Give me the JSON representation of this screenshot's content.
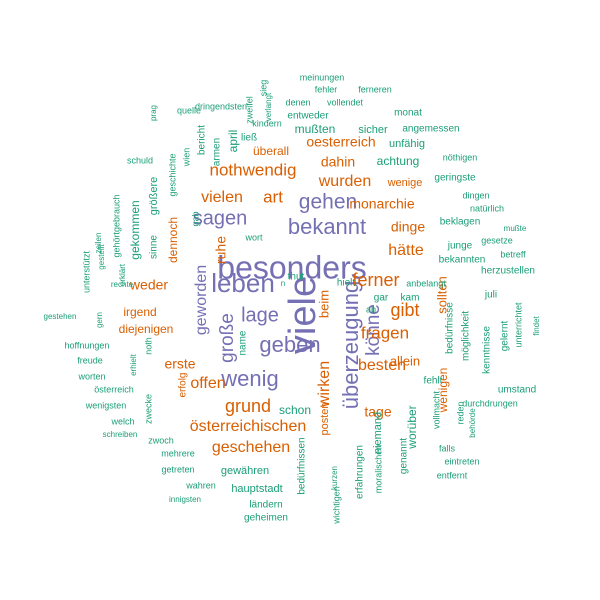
{
  "colors": {
    "purple": "#7570b3",
    "orange": "#d95f02",
    "teal": "#1b9e77"
  },
  "words": [
    {
      "text": "besonders",
      "color": "purple"
    },
    {
      "text": "viele",
      "color": "purple"
    },
    {
      "text": "überzeugung",
      "color": "purple"
    },
    {
      "text": "leben",
      "color": "purple"
    },
    {
      "text": "geben",
      "color": "purple"
    },
    {
      "text": "wenig",
      "color": "purple"
    },
    {
      "text": "bekannt",
      "color": "purple"
    },
    {
      "text": "gehen",
      "color": "purple"
    },
    {
      "text": "sagen",
      "color": "purple"
    },
    {
      "text": "lage",
      "color": "purple"
    },
    {
      "text": "große",
      "color": "purple"
    },
    {
      "text": "könne",
      "color": "purple"
    },
    {
      "text": "geworden",
      "color": "purple"
    },
    {
      "text": "nothwendig",
      "color": "orange"
    },
    {
      "text": "grund",
      "color": "orange"
    },
    {
      "text": "österreichischen",
      "color": "orange"
    },
    {
      "text": "geschehen",
      "color": "orange"
    },
    {
      "text": "wurden",
      "color": "orange"
    },
    {
      "text": "art",
      "color": "orange"
    },
    {
      "text": "vielen",
      "color": "orange"
    },
    {
      "text": "ferner",
      "color": "orange"
    },
    {
      "text": "gibt",
      "color": "orange"
    },
    {
      "text": "fragen",
      "color": "orange"
    },
    {
      "text": "besten",
      "color": "orange"
    },
    {
      "text": "hätte",
      "color": "orange"
    },
    {
      "text": "dinge",
      "color": "orange"
    },
    {
      "text": "monarchie",
      "color": "orange"
    },
    {
      "text": "allein",
      "color": "orange"
    },
    {
      "text": "offen",
      "color": "orange"
    },
    {
      "text": "tage",
      "color": "orange"
    },
    {
      "text": "wirken",
      "color": "orange"
    },
    {
      "text": "dahin",
      "color": "orange"
    },
    {
      "text": "oesterreich",
      "color": "orange"
    },
    {
      "text": "weder",
      "color": "orange"
    },
    {
      "text": "erste",
      "color": "orange"
    },
    {
      "text": "ruhe",
      "color": "orange"
    },
    {
      "text": "dennoch",
      "color": "orange"
    },
    {
      "text": "beim",
      "color": "orange"
    },
    {
      "text": "sollten",
      "color": "orange"
    },
    {
      "text": "wenigen",
      "color": "orange"
    },
    {
      "text": "überall",
      "color": "orange"
    },
    {
      "text": "wenige",
      "color": "orange"
    },
    {
      "text": "irgend",
      "color": "orange"
    },
    {
      "text": "diejenigen",
      "color": "orange"
    },
    {
      "text": "posten",
      "color": "orange"
    },
    {
      "text": "erfolg",
      "color": "orange"
    },
    {
      "text": "gewähren",
      "color": "teal"
    },
    {
      "text": "hauptstadt",
      "color": "teal"
    },
    {
      "text": "ländern",
      "color": "teal"
    },
    {
      "text": "geheimen",
      "color": "teal"
    },
    {
      "text": "wahren",
      "color": "teal"
    },
    {
      "text": "getreten",
      "color": "teal"
    },
    {
      "text": "mehrere",
      "color": "teal"
    },
    {
      "text": "zwoch",
      "color": "teal"
    },
    {
      "text": "innigsten",
      "color": "teal"
    },
    {
      "text": "welch",
      "color": "teal"
    },
    {
      "text": "schreiben",
      "color": "teal"
    },
    {
      "text": "wenigsten",
      "color": "teal"
    },
    {
      "text": "worten",
      "color": "teal"
    },
    {
      "text": "österreich",
      "color": "teal"
    },
    {
      "text": "freude",
      "color": "teal"
    },
    {
      "text": "hoffnungen",
      "color": "teal"
    },
    {
      "text": "gestehen",
      "color": "teal"
    },
    {
      "text": "gern",
      "color": "teal"
    },
    {
      "text": "unterstützt",
      "color": "teal"
    },
    {
      "text": "gehörtgebrauch",
      "color": "teal"
    },
    {
      "text": "zeilen",
      "color": "teal"
    },
    {
      "text": "gestellt",
      "color": "teal"
    },
    {
      "text": "erklärt",
      "color": "teal"
    },
    {
      "text": "gekommen",
      "color": "teal"
    },
    {
      "text": "sinne",
      "color": "teal"
    },
    {
      "text": "größere",
      "color": "teal"
    },
    {
      "text": "gab",
      "color": "teal"
    },
    {
      "text": "rechte",
      "color": "teal"
    },
    {
      "text": "erhielt",
      "color": "teal"
    },
    {
      "text": "noth",
      "color": "teal"
    },
    {
      "text": "zwecke",
      "color": "teal"
    },
    {
      "text": "schuld",
      "color": "teal"
    },
    {
      "text": "geschichte",
      "color": "teal"
    },
    {
      "text": "wien",
      "color": "teal"
    },
    {
      "text": "prag",
      "color": "teal"
    },
    {
      "text": "quelle",
      "color": "teal"
    },
    {
      "text": "dringendsten",
      "color": "teal"
    },
    {
      "text": "bericht",
      "color": "teal"
    },
    {
      "text": "armen",
      "color": "teal"
    },
    {
      "text": "april",
      "color": "teal"
    },
    {
      "text": "zweifel",
      "color": "teal"
    },
    {
      "text": "verlangt",
      "color": "teal"
    },
    {
      "text": "sieg",
      "color": "teal"
    },
    {
      "text": "kindern",
      "color": "teal"
    },
    {
      "text": "ließ",
      "color": "teal"
    },
    {
      "text": "denen",
      "color": "teal"
    },
    {
      "text": "fehler",
      "color": "teal"
    },
    {
      "text": "meinungen",
      "color": "teal"
    },
    {
      "text": "ferneren",
      "color": "teal"
    },
    {
      "text": "vollendet",
      "color": "teal"
    },
    {
      "text": "entweder",
      "color": "teal"
    },
    {
      "text": "mußten",
      "color": "teal"
    },
    {
      "text": "sicher",
      "color": "teal"
    },
    {
      "text": "monat",
      "color": "teal"
    },
    {
      "text": "angemessen",
      "color": "teal"
    },
    {
      "text": "unfähig",
      "color": "teal"
    },
    {
      "text": "achtung",
      "color": "teal"
    },
    {
      "text": "nöthigen",
      "color": "teal"
    },
    {
      "text": "geringste",
      "color": "teal"
    },
    {
      "text": "dingen",
      "color": "teal"
    },
    {
      "text": "natürlich",
      "color": "teal"
    },
    {
      "text": "beklagen",
      "color": "teal"
    },
    {
      "text": "gesetze",
      "color": "teal"
    },
    {
      "text": "junge",
      "color": "teal"
    },
    {
      "text": "betreff",
      "color": "teal"
    },
    {
      "text": "bekannten",
      "color": "teal"
    },
    {
      "text": "mußte",
      "color": "teal"
    },
    {
      "text": "herzustellen",
      "color": "teal"
    },
    {
      "text": "anbelangt",
      "color": "teal"
    },
    {
      "text": "juli",
      "color": "teal"
    },
    {
      "text": "findet",
      "color": "teal"
    },
    {
      "text": "unterrichtet",
      "color": "teal"
    },
    {
      "text": "gelernt",
      "color": "teal"
    },
    {
      "text": "möglichkeit",
      "color": "teal"
    },
    {
      "text": "bedürfnisse",
      "color": "teal"
    },
    {
      "text": "kenntnisse",
      "color": "teal"
    },
    {
      "text": "umstand",
      "color": "teal"
    },
    {
      "text": "durchdrungen",
      "color": "teal"
    },
    {
      "text": "behörde",
      "color": "teal"
    },
    {
      "text": "reden",
      "color": "teal"
    },
    {
      "text": "vollmacht",
      "color": "teal"
    },
    {
      "text": "fehlt",
      "color": "teal"
    },
    {
      "text": "falls",
      "color": "teal"
    },
    {
      "text": "eintreten",
      "color": "teal"
    },
    {
      "text": "entfernt",
      "color": "teal"
    },
    {
      "text": "worüber",
      "color": "teal"
    },
    {
      "text": "genannt",
      "color": "teal"
    },
    {
      "text": "moralischen",
      "color": "teal"
    },
    {
      "text": "niemand",
      "color": "teal"
    },
    {
      "text": "erfahrungen",
      "color": "teal"
    },
    {
      "text": "kurzen",
      "color": "teal"
    },
    {
      "text": "wichtigen",
      "color": "teal"
    },
    {
      "text": "bedürfnissen",
      "color": "teal"
    },
    {
      "text": "schon",
      "color": "teal"
    },
    {
      "text": "wort",
      "color": "teal"
    },
    {
      "text": "name",
      "color": "teal"
    },
    {
      "text": "thut",
      "color": "teal"
    },
    {
      "text": "gar",
      "color": "teal"
    },
    {
      "text": "kam",
      "color": "teal"
    },
    {
      "text": "ab",
      "color": "teal"
    },
    {
      "text": "hielt",
      "color": "teal"
    },
    {
      "text": "n",
      "color": "teal"
    },
    {
      "text": "v",
      "color": "teal"
    }
  ]
}
